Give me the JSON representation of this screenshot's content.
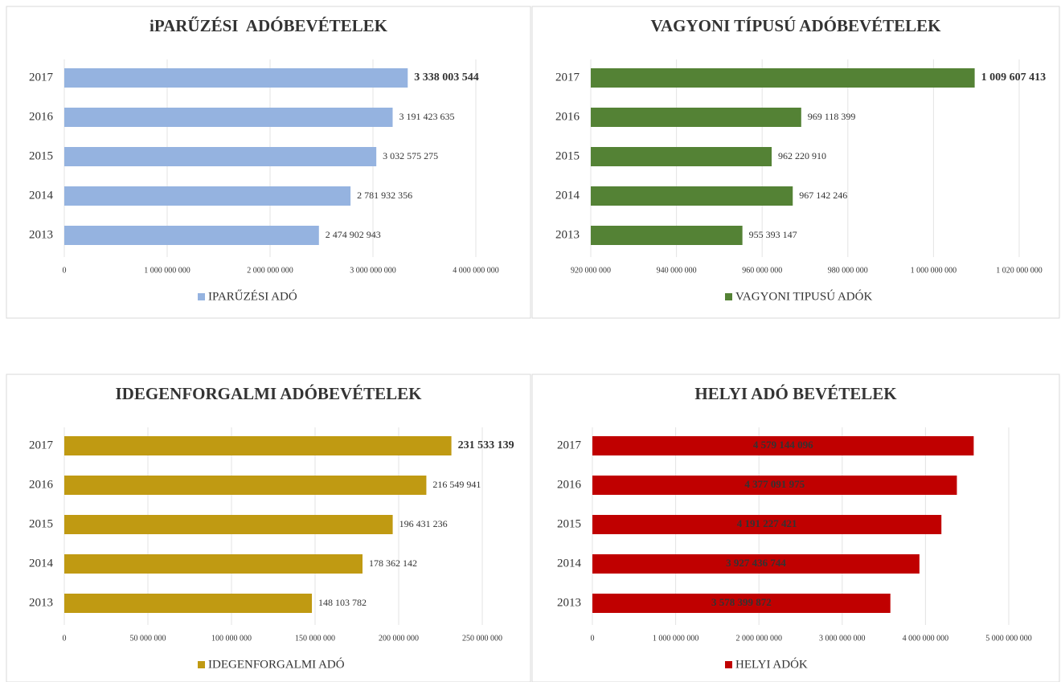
{
  "chart_data": [
    {
      "type": "bar",
      "title": "iPARŰZÉSI  ADÓBEVÉTELEK",
      "categories": [
        "2017",
        "2016",
        "2015",
        "2014",
        "2013"
      ],
      "series": [
        {
          "name": "IPARŰZÉSI ADÓ",
          "color": "#95b3e0",
          "values": [
            3338003544,
            3191423635,
            3032575275,
            2781932356,
            2474902943
          ],
          "value_labels": [
            "3 338 003 544",
            "3 191 423 635",
            "3 032 575 275",
            "2 781 932 356",
            "2 474 902 943"
          ]
        }
      ],
      "xlim": [
        0,
        4000000000
      ],
      "xticks": [
        0,
        {
          "value": 1000000000,
          "label": "1 000 000 000"
        },
        {
          "value": 2000000000,
          "label": "2 000 000 000"
        },
        {
          "value": 3000000000,
          "label": "3 000 000 000"
        },
        {
          "value": 4000000000,
          "label": "4 000 000 000"
        }
      ],
      "grid": true,
      "legend": "bottom",
      "label_position": "outside"
    },
    {
      "type": "bar",
      "title": "VAGYONI TÍPUSÚ ADÓBEVÉTELEK",
      "categories": [
        "2017",
        "2016",
        "2015",
        "2014",
        "2013"
      ],
      "series": [
        {
          "name": "VAGYONI TIPUSÚ ADÓK",
          "color": "#548235",
          "values": [
            1009607413,
            969118399,
            962220910,
            967142246,
            955393147
          ],
          "value_labels": [
            "1 009 607 413",
            "969 118 399",
            "962 220 910",
            "967 142 246",
            "955 393 147"
          ]
        }
      ],
      "xlim": [
        920000000,
        1020000000
      ],
      "xticks": [
        {
          "value": 920000000,
          "label": "920 000 000"
        },
        {
          "value": 940000000,
          "label": "940 000 000"
        },
        {
          "value": 960000000,
          "label": "960 000 000"
        },
        {
          "value": 980000000,
          "label": "980 000 000"
        },
        {
          "value": 1000000000,
          "label": "1 000 000 000"
        },
        {
          "value": 1020000000,
          "label": "1 020 000 000"
        }
      ],
      "grid": true,
      "legend": "bottom",
      "label_position": "outside"
    },
    {
      "type": "bar",
      "title": "IDEGENFORGALMI ADÓBEVÉTELEK",
      "categories": [
        "2017",
        "2016",
        "2015",
        "2014",
        "2013"
      ],
      "series": [
        {
          "name": "IDEGENFORGALMI ADÓ",
          "color": "#c09a12",
          "values": [
            231533139,
            216549941,
            196431236,
            178362142,
            148103782
          ],
          "value_labels": [
            "231 533 139",
            "216 549 941",
            "196 431 236",
            "178 362 142",
            "148 103 782"
          ]
        }
      ],
      "xlim": [
        0,
        250000000
      ],
      "xticks": [
        0,
        {
          "value": 50000000,
          "label": "50 000 000"
        },
        {
          "value": 100000000,
          "label": "100 000 000"
        },
        {
          "value": 150000000,
          "label": "150 000 000"
        },
        {
          "value": 200000000,
          "label": "200 000 000"
        },
        {
          "value": 250000000,
          "label": "250 000 000"
        }
      ],
      "grid": true,
      "legend": "bottom",
      "label_position": "outside"
    },
    {
      "type": "bar",
      "title": "HELYI ADÓ BEVÉTELEK",
      "categories": [
        "2017",
        "2016",
        "2015",
        "2014",
        "2013"
      ],
      "series": [
        {
          "name": "HELYI ADÓK",
          "color": "#c00000",
          "values": [
            4579144096,
            4377091975,
            4191227421,
            3927436744,
            3578399872
          ],
          "value_labels": [
            "4 579 144 096",
            "4 377 091 975",
            "4 191 227 421",
            "3 927 436 744",
            "3 578 399 872"
          ]
        }
      ],
      "xlim": [
        0,
        5000000000
      ],
      "xticks": [
        0,
        {
          "value": 1000000000,
          "label": "1 000 000 000"
        },
        {
          "value": 2000000000,
          "label": "2 000 000 000"
        },
        {
          "value": 3000000000,
          "label": "3 000 000 000"
        },
        {
          "value": 4000000000,
          "label": "4 000 000 000"
        },
        {
          "value": 5000000000,
          "label": "5 000 000 000"
        }
      ],
      "grid": true,
      "legend": "bottom",
      "label_position": "inside"
    }
  ]
}
